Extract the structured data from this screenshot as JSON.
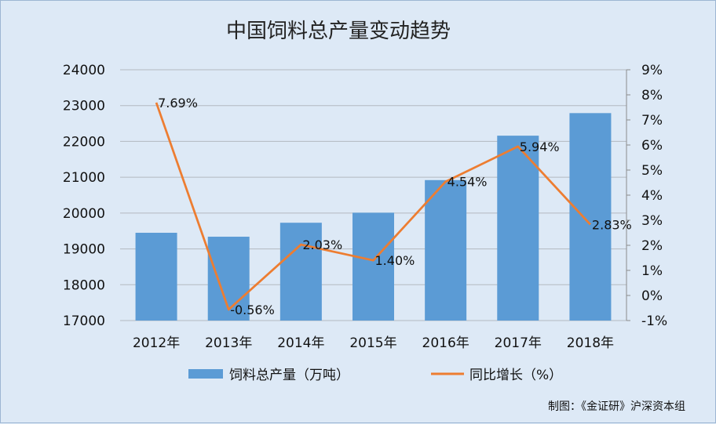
{
  "chart_data": {
    "type": "bar+line",
    "title": "中国饲料总产量变动趋势",
    "categories": [
      "2012年",
      "2013年",
      "2014年",
      "2015年",
      "2016年",
      "2017年",
      "2018年"
    ],
    "series": [
      {
        "name": "饲料总产量（万吨）",
        "type": "bar",
        "axis": "left",
        "color": "#5b9bd5",
        "values": [
          19450,
          19340,
          19730,
          20010,
          20920,
          22160,
          22790
        ]
      },
      {
        "name": "同比增长（%）",
        "type": "line",
        "axis": "right",
        "color": "#ed7d31",
        "values": [
          7.69,
          -0.56,
          2.03,
          1.4,
          4.54,
          5.94,
          2.83
        ],
        "labels": [
          "7.69%",
          "-0.56%",
          "2.03%",
          "1.40%",
          "4.54%",
          "5.94%",
          "2.83%"
        ]
      }
    ],
    "y_left": {
      "min": 17000,
      "max": 24000,
      "ticks": [
        "17000",
        "18000",
        "19000",
        "20000",
        "21000",
        "22000",
        "23000",
        "24000"
      ]
    },
    "y_right": {
      "min": -1,
      "max": 9,
      "ticks": [
        "-1%",
        "0%",
        "1%",
        "2%",
        "3%",
        "4%",
        "5%",
        "6%",
        "7%",
        "8%",
        "9%"
      ]
    },
    "grid": true,
    "legend": "bottom"
  },
  "credit": "制图：《金证研》沪深资本组"
}
